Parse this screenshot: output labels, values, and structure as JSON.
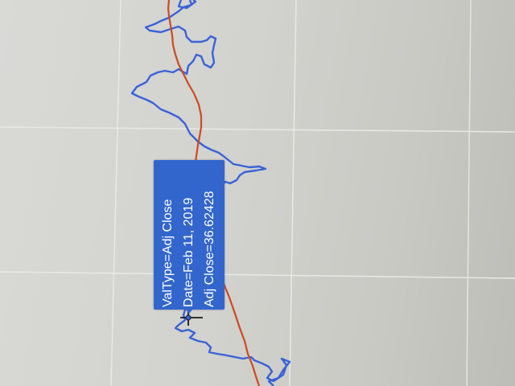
{
  "tooltip": {
    "line1": "ValType=Adj Close",
    "line2": "Date=Feb 11, 2019",
    "line3": "Adj Close=36.62428"
  },
  "chart_data": {
    "type": "line",
    "title": "",
    "xlabel": "",
    "ylabel": "",
    "grid": true,
    "series": [
      {
        "name": "Adj Close",
        "color": "#3a62d8"
      },
      {
        "name": "",
        "color": "#cc4a22"
      }
    ],
    "hover": {
      "series": "Adj Close",
      "date": "Feb 11, 2019",
      "value": 36.62428
    }
  },
  "colors": {
    "tooltip_bg": "#3366cc",
    "tooltip_text": "#ffffff",
    "price_line": "#3a62d8",
    "average_line": "#cc4a22",
    "grid": "#e6e6e3"
  }
}
